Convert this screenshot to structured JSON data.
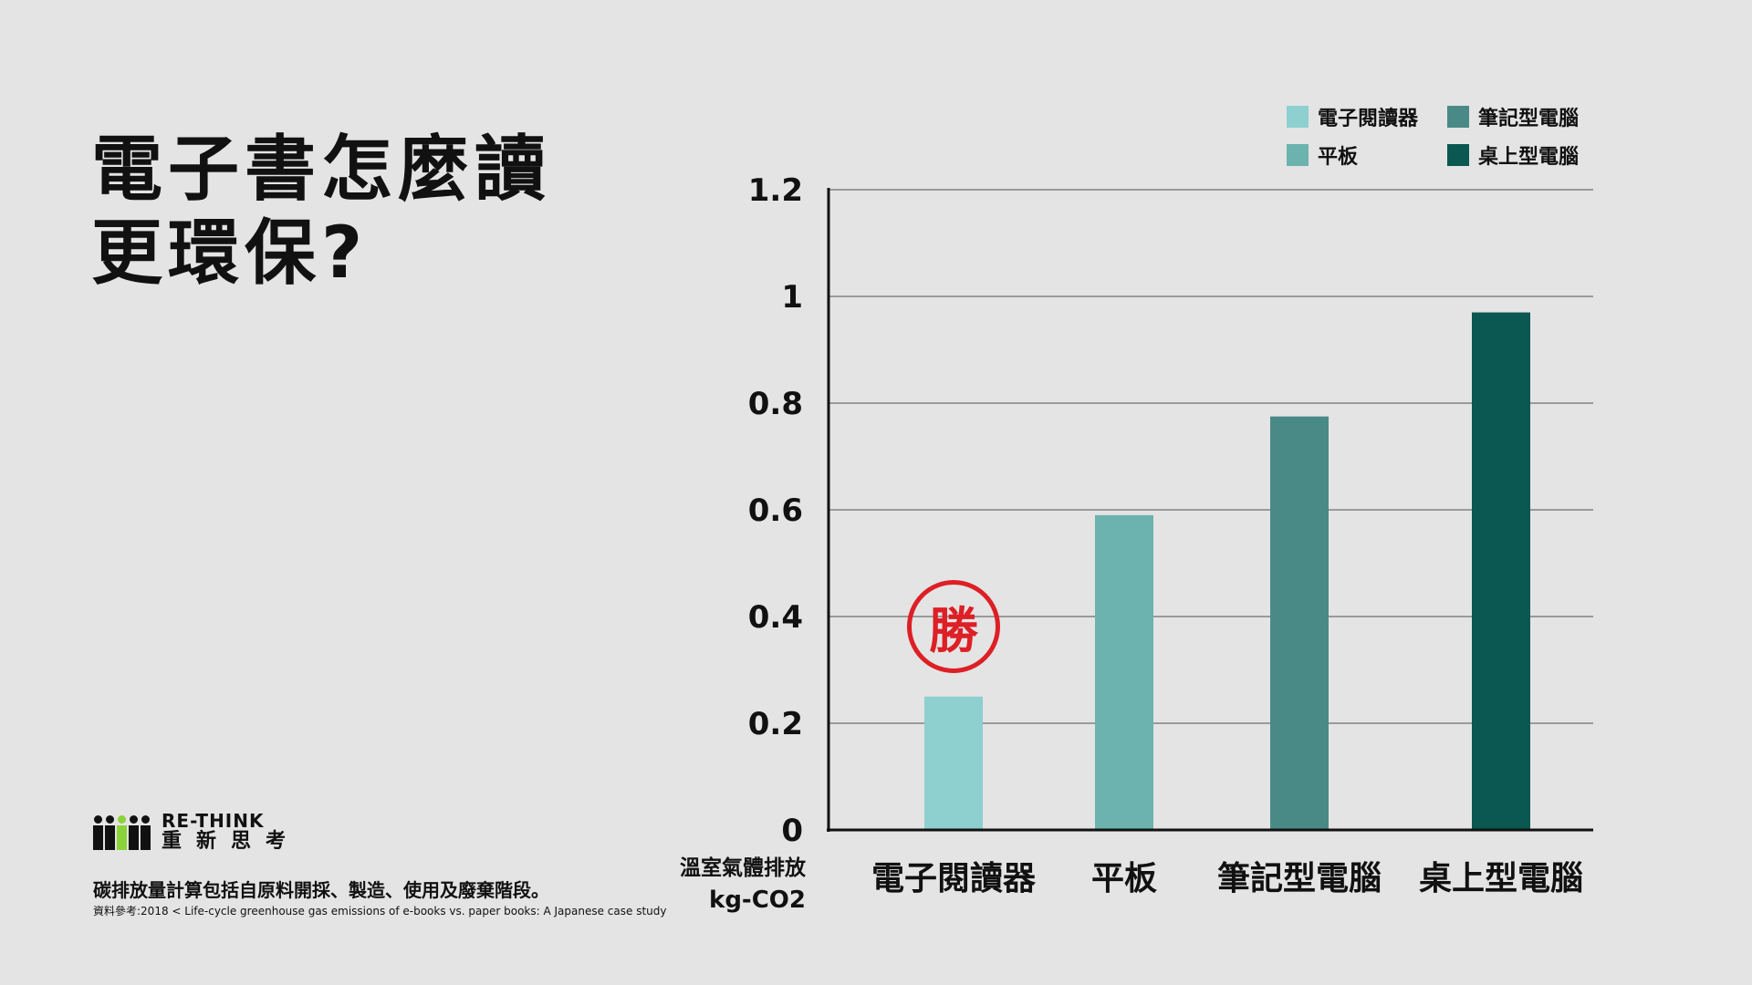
{
  "title_lines": [
    "電子書怎麼讀",
    "更環保?"
  ],
  "legend": [
    {
      "label": "電子閱讀器",
      "color": "#8ecfcf"
    },
    {
      "label": "筆記型電腦",
      "color": "#4a8a86"
    },
    {
      "label": "平板",
      "color": "#6cb2ae"
    },
    {
      "label": "桌上型電腦",
      "color": "#0b5751"
    }
  ],
  "stamp_text": "勝",
  "unit_label": "溫室氣體排放",
  "unit": "kg-CO2",
  "logo": {
    "en": "RE-THINK",
    "zh": "重新思考"
  },
  "note": "碳排放量計算包括自原料開採、製造、使用及廢棄階段。",
  "source": "資料參考:2018 < Life-cycle greenhouse gas emissions of e-books vs. paper books: A Japanese case study",
  "chart_data": {
    "type": "bar",
    "categories": [
      "電子閱讀器",
      "平板",
      "筆記型電腦",
      "桌上型電腦"
    ],
    "values": [
      0.25,
      0.59,
      0.775,
      0.97
    ],
    "colors": [
      "#8ecfcf",
      "#6cb2ae",
      "#4a8a86",
      "#0b5751"
    ],
    "ylim": [
      0,
      1.2
    ],
    "yticks": [
      "0",
      "0.2",
      "0.4",
      "0.6",
      "0.8",
      "1",
      "1.2"
    ],
    "ytick_values": [
      0,
      0.2,
      0.4,
      0.6,
      0.8,
      1,
      1.2
    ],
    "grid": true,
    "legend_position": "top-right",
    "ylabel": "溫室氣體排放 kg-CO2"
  }
}
